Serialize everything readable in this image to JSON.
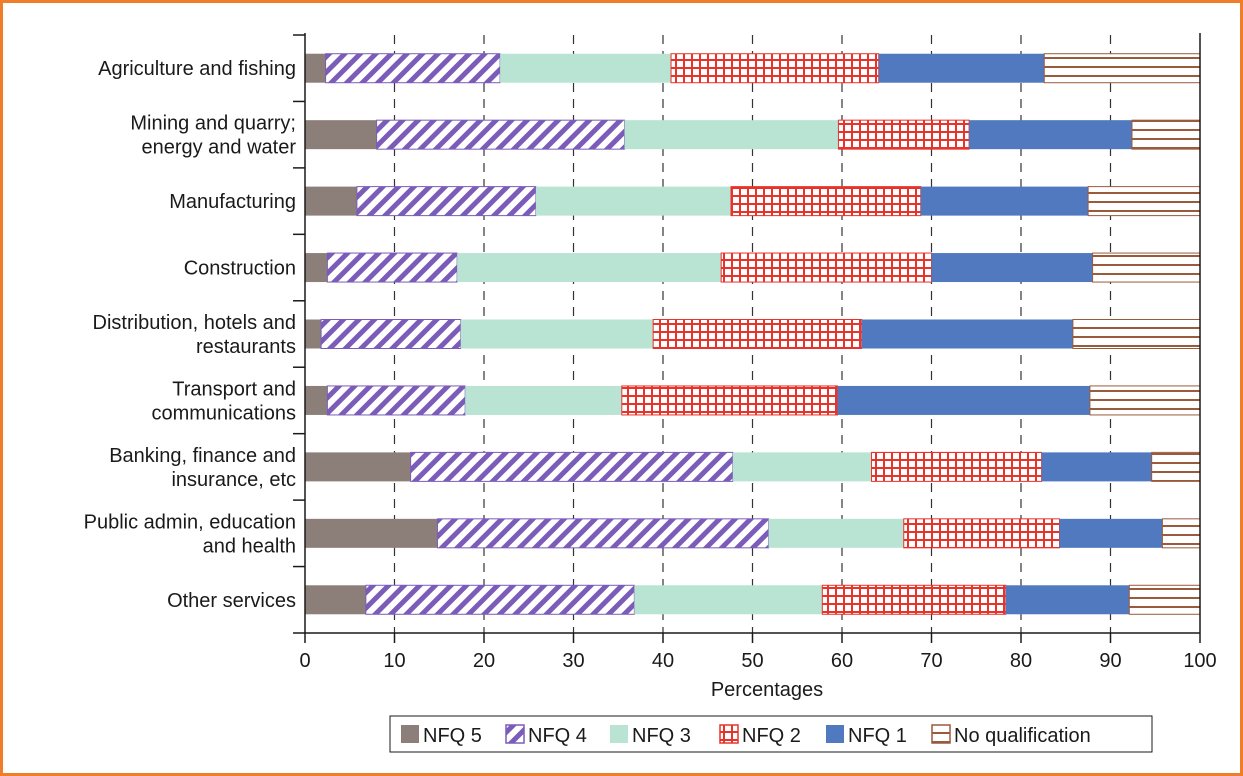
{
  "chart_data": {
    "type": "bar",
    "orientation": "horizontal",
    "stacked": true,
    "categories": [
      [
        "Agriculture and fishing"
      ],
      [
        "Mining and quarry;",
        "energy and water"
      ],
      [
        "Manufacturing"
      ],
      [
        "Construction"
      ],
      [
        "Distribution, hotels and",
        "restaurants"
      ],
      [
        "Transport and",
        "communications"
      ],
      [
        "Banking, finance and",
        "insurance, etc"
      ],
      [
        "Public admin, education",
        "and  health"
      ],
      [
        "Other services"
      ]
    ],
    "series": [
      {
        "name": "NFQ 5",
        "color": "#8c7f7a",
        "pattern": "solid",
        "values": [
          2.3,
          8.0,
          5.8,
          2.5,
          1.8,
          2.5,
          11.8,
          14.8,
          6.8
        ]
      },
      {
        "name": "NFQ 4",
        "color": "#7b5cb8",
        "pattern": "diagonal",
        "values": [
          19.5,
          27.7,
          20.0,
          14.5,
          15.6,
          15.4,
          36.0,
          37.0,
          30.0
        ]
      },
      {
        "name": "NFQ 3",
        "color": "#b9e4d3",
        "pattern": "solid",
        "values": [
          19.1,
          23.9,
          21.8,
          29.5,
          21.5,
          17.5,
          15.5,
          15.1,
          21.0
        ]
      },
      {
        "name": "NFQ 2",
        "color": "#e8332b",
        "pattern": "grid",
        "values": [
          23.2,
          14.6,
          21.2,
          23.5,
          23.3,
          24.1,
          19.0,
          17.4,
          20.5
        ]
      },
      {
        "name": "NFQ 1",
        "color": "#5079bf",
        "pattern": "solid",
        "values": [
          18.5,
          18.2,
          18.7,
          18.0,
          23.6,
          28.2,
          12.3,
          11.5,
          13.8
        ]
      },
      {
        "name": "No qualification",
        "color": "#9a5a3c",
        "pattern": "horizontal",
        "values": [
          17.4,
          7.6,
          12.5,
          12.0,
          14.2,
          12.3,
          5.4,
          4.2,
          7.9
        ]
      }
    ],
    "xlabel": "Percentages",
    "ylabel": "",
    "xlim": [
      0,
      100
    ],
    "xticks": [
      0,
      10,
      20,
      30,
      40,
      50,
      60,
      70,
      80,
      90,
      100
    ],
    "grid": "vertical dashed",
    "legend_position": "bottom"
  }
}
